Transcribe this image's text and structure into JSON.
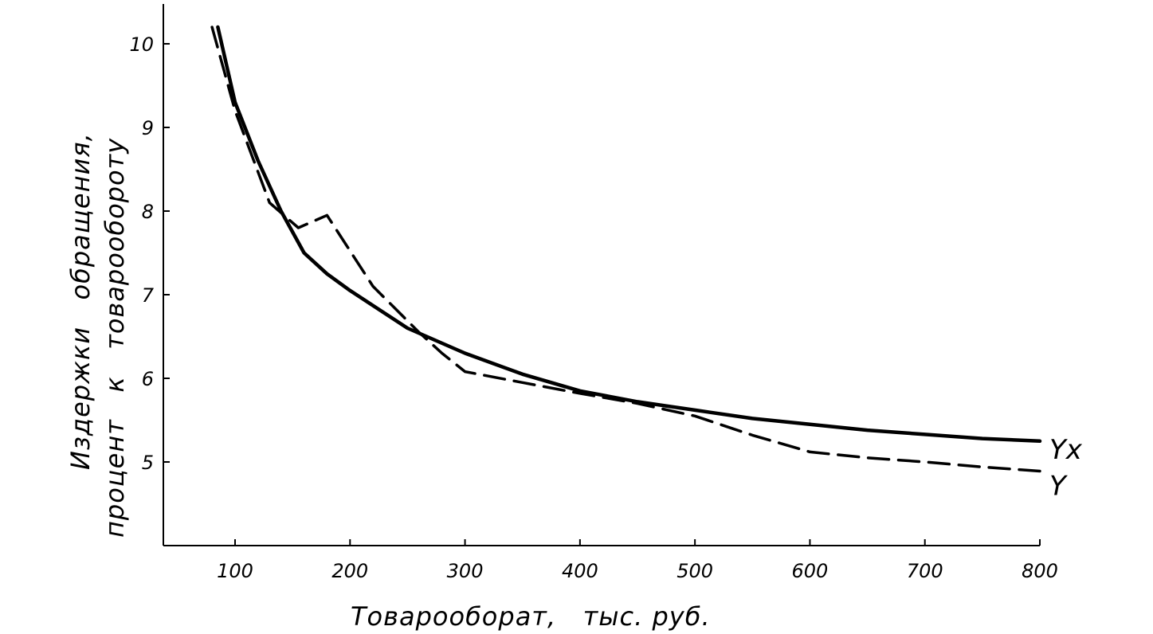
{
  "chart_data": {
    "type": "line",
    "xlabel": "Товарооборат,   тыс. руб.",
    "ylabel_line1": "Издержки   обращения,",
    "ylabel_line2": "процент   к   товарообороту",
    "xlim": [
      40,
      800
    ],
    "ylim": [
      4,
      10.5
    ],
    "x_ticks": [
      100,
      200,
      300,
      400,
      500,
      600,
      700,
      800
    ],
    "x_tick_labels": [
      "100",
      "200",
      "300",
      "400",
      "500",
      "600",
      "700",
      "800"
    ],
    "y_ticks": [
      5,
      6,
      7,
      8,
      9,
      10
    ],
    "y_tick_labels": [
      "5",
      "6",
      "7",
      "8",
      "9",
      "10"
    ],
    "grid": false,
    "legend": "none",
    "series": [
      {
        "name": "Yx",
        "style": "solid",
        "x": [
          85,
          100,
          120,
          140,
          160,
          180,
          200,
          250,
          300,
          350,
          400,
          450,
          500,
          550,
          600,
          650,
          700,
          750,
          800
        ],
        "y": [
          10.2,
          9.3,
          8.6,
          8.0,
          7.5,
          7.25,
          7.05,
          6.6,
          6.3,
          6.05,
          5.85,
          5.72,
          5.62,
          5.52,
          5.45,
          5.38,
          5.33,
          5.28,
          5.25
        ]
      },
      {
        "name": "Y",
        "style": "dashed",
        "x": [
          80,
          100,
          130,
          155,
          180,
          220,
          260,
          280,
          300,
          350,
          400,
          450,
          500,
          550,
          600,
          650,
          700,
          750,
          800
        ],
        "y": [
          10.2,
          9.2,
          8.1,
          7.8,
          7.95,
          7.1,
          6.55,
          6.3,
          6.08,
          5.95,
          5.82,
          5.7,
          5.55,
          5.32,
          5.12,
          5.05,
          5.0,
          4.94,
          4.89
        ]
      }
    ],
    "colors": {
      "line": "#000000",
      "background": "#ffffff"
    }
  }
}
